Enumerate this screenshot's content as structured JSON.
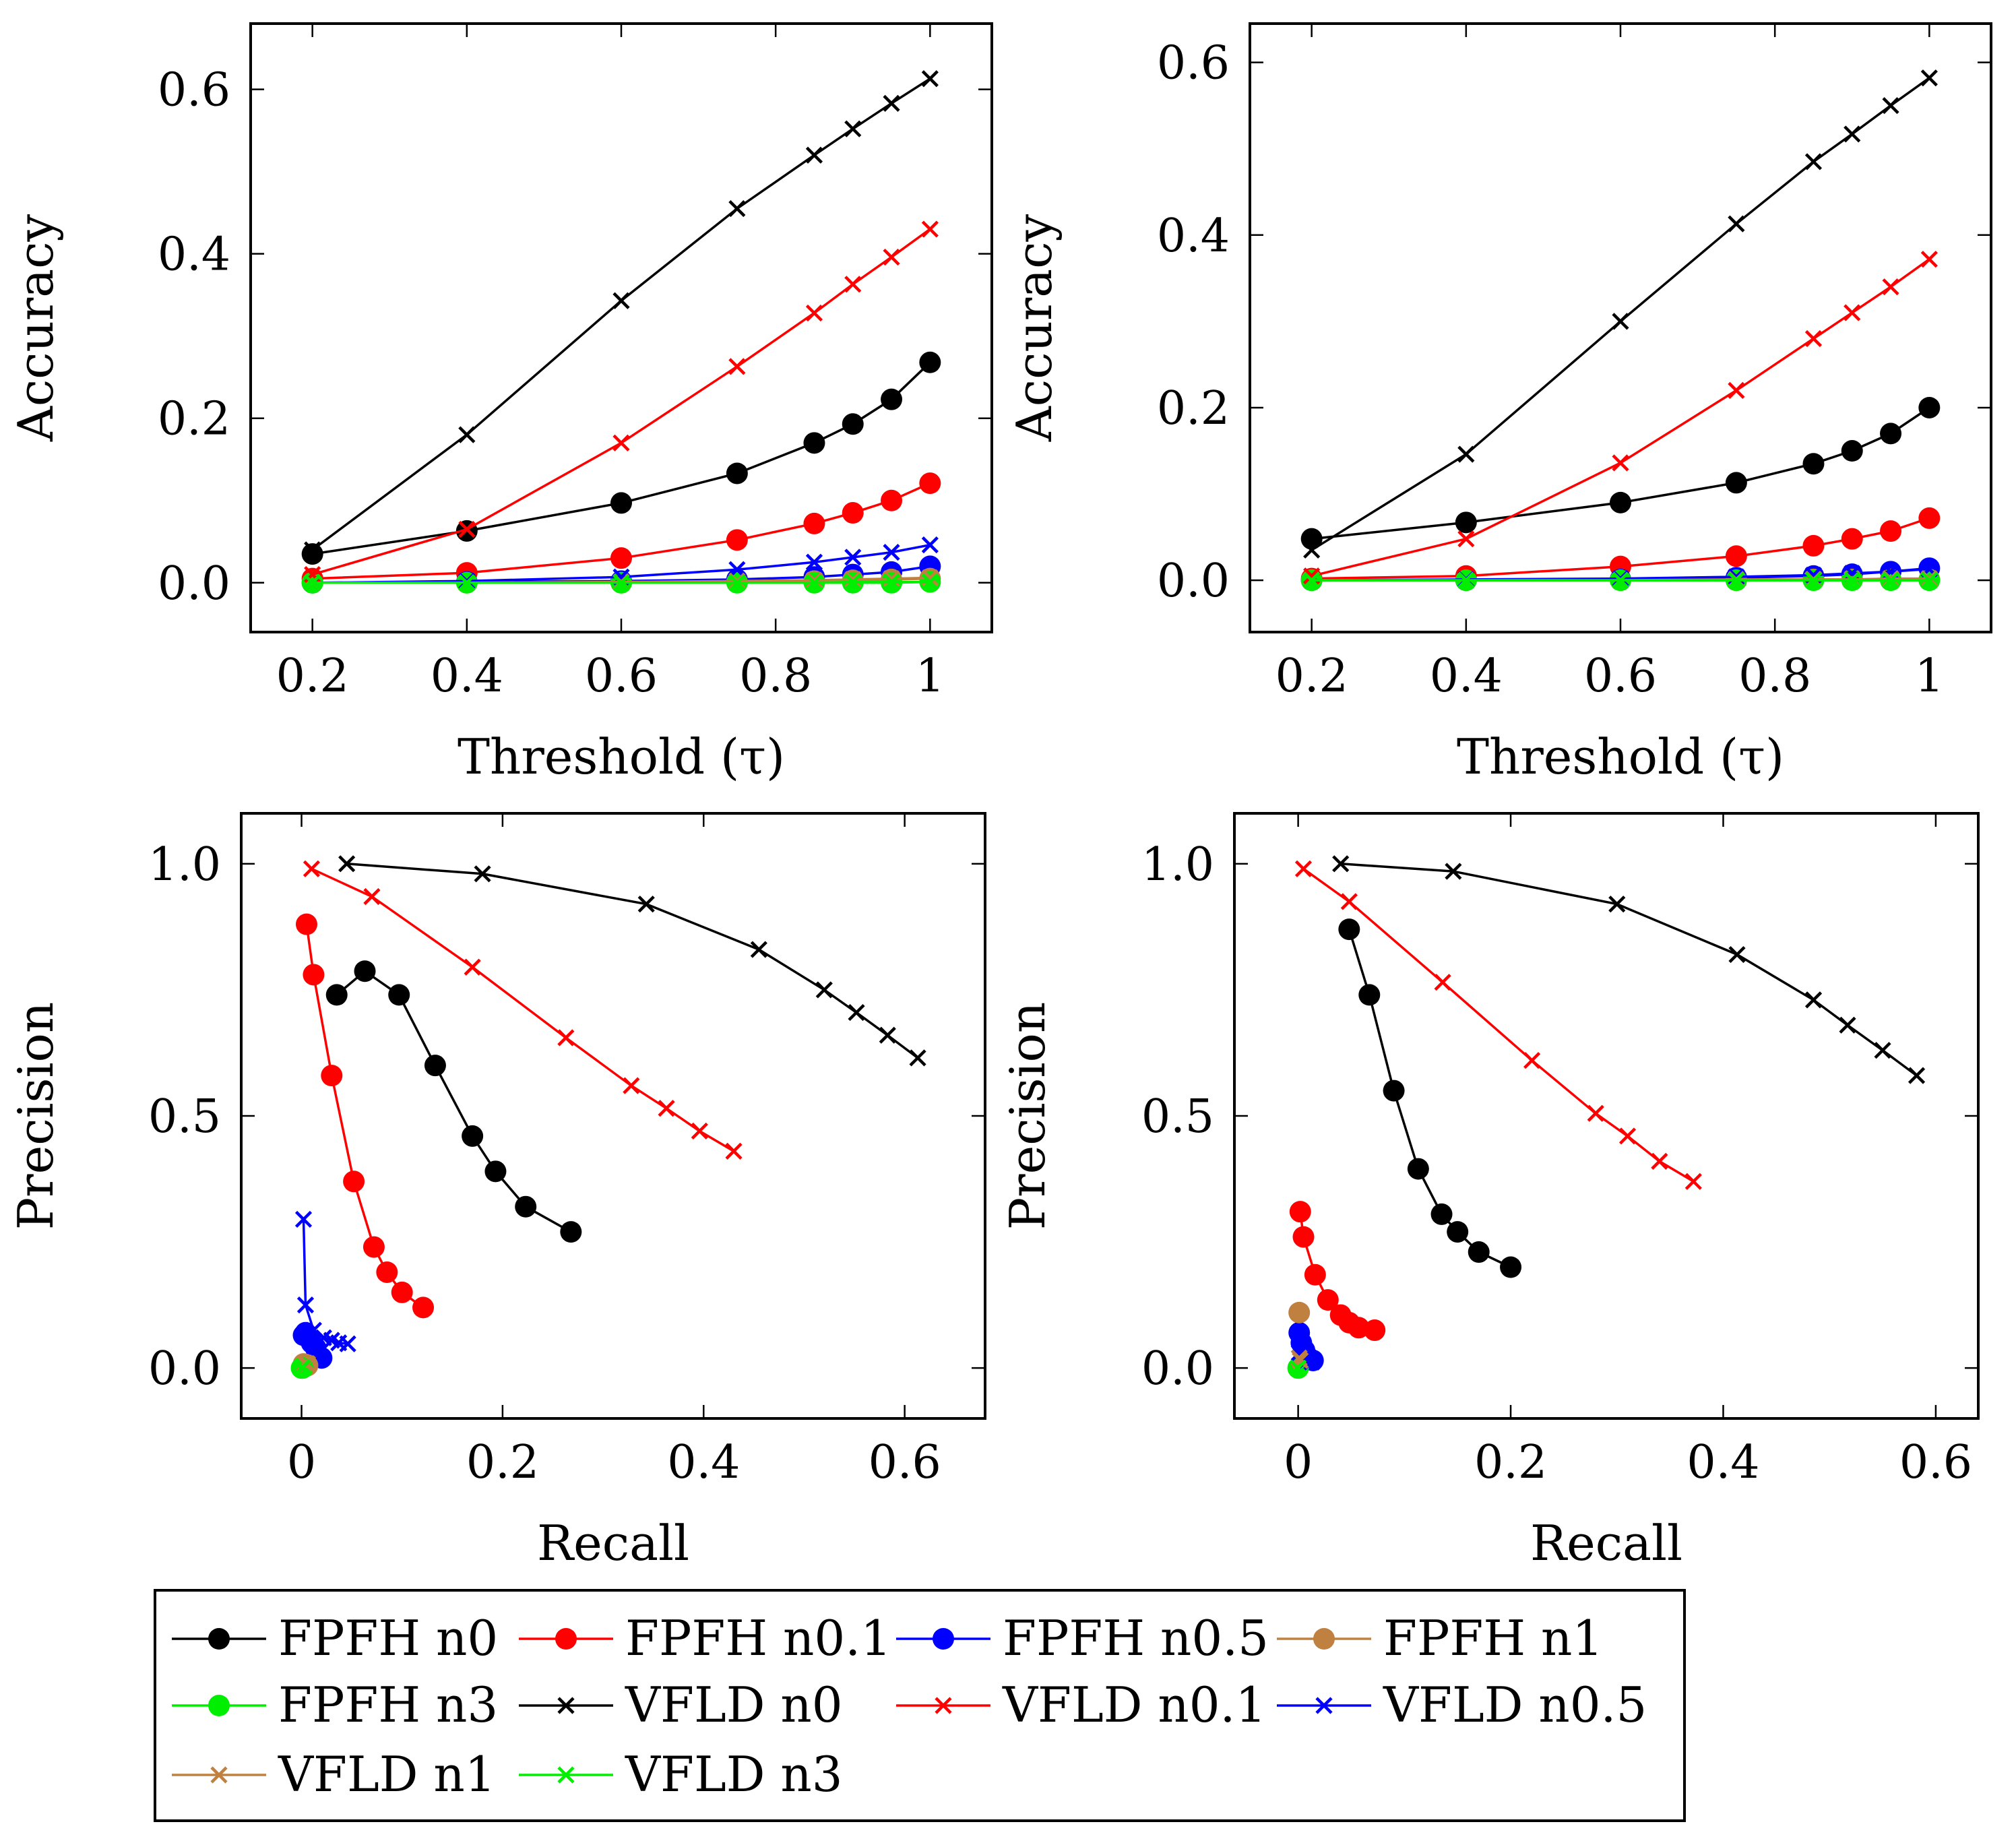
{
  "colors": {
    "FPFH n0": "#000000",
    "FPFH n0.1": "#ff0000",
    "FPFH n0.5": "#0000ff",
    "FPFH n1": "#bf8040",
    "FPFH n3": "#00ee00",
    "VFLD n0": "#000000",
    "VFLD n0.1": "#ff0000",
    "VFLD n0.5": "#0000ff",
    "VFLD n1": "#bf8040",
    "VFLD n3": "#00ee00"
  },
  "legend": {
    "entries": [
      {
        "label": "FPFH n0",
        "marker": "circle"
      },
      {
        "label": "FPFH n0.1",
        "marker": "circle"
      },
      {
        "label": "FPFH n0.5",
        "marker": "circle"
      },
      {
        "label": "FPFH n1",
        "marker": "circle"
      },
      {
        "label": "FPFH n3",
        "marker": "circle"
      },
      {
        "label": "VFLD n0",
        "marker": "cross"
      },
      {
        "label": "VFLD n0.1",
        "marker": "cross"
      },
      {
        "label": "VFLD n0.5",
        "marker": "cross"
      },
      {
        "label": "VFLD n1",
        "marker": "cross"
      },
      {
        "label": "VFLD n3",
        "marker": "cross"
      }
    ]
  },
  "chart_data": [
    {
      "type": "line",
      "xlabel": "Threshold (τ)",
      "ylabel": "Accuracy",
      "xlim": [
        0.12,
        1.08
      ],
      "ylim": [
        -0.06,
        0.68
      ],
      "xticks": [
        0.2,
        0.4,
        0.6,
        0.8,
        1
      ],
      "xtick_labels": [
        "0.2",
        "0.4",
        "0.6",
        "0.8",
        "1"
      ],
      "yticks": [
        0.0,
        0.2,
        0.4,
        0.6
      ],
      "ytick_labels": [
        "0.0",
        "0.2",
        "0.4",
        "0.6"
      ],
      "x": [
        0.2,
        0.4,
        0.6,
        0.75,
        0.85,
        0.9,
        0.95,
        1.0
      ],
      "series": [
        {
          "name": "FPFH n0",
          "values": [
            0.035,
            0.063,
            0.097,
            0.133,
            0.17,
            0.193,
            0.223,
            0.268
          ]
        },
        {
          "name": "FPFH n0.1",
          "values": [
            0.005,
            0.012,
            0.03,
            0.052,
            0.072,
            0.085,
            0.1,
            0.121
          ]
        },
        {
          "name": "FPFH n0.5",
          "values": [
            0.0,
            0.001,
            0.002,
            0.004,
            0.007,
            0.01,
            0.013,
            0.02
          ]
        },
        {
          "name": "FPFH n1",
          "values": [
            0.0,
            0.0,
            0.0,
            0.001,
            0.002,
            0.003,
            0.004,
            0.005
          ]
        },
        {
          "name": "FPFH n3",
          "values": [
            0.0,
            0.0,
            0.0,
            0.0,
            0.0,
            0.0,
            0.0,
            0.001
          ]
        },
        {
          "name": "VFLD n0",
          "values": [
            0.04,
            0.18,
            0.343,
            0.455,
            0.52,
            0.552,
            0.583,
            0.613
          ]
        },
        {
          "name": "VFLD n0.1",
          "values": [
            0.01,
            0.065,
            0.17,
            0.263,
            0.328,
            0.363,
            0.396,
            0.43
          ]
        },
        {
          "name": "VFLD n0.5",
          "values": [
            0.0,
            0.002,
            0.007,
            0.016,
            0.025,
            0.031,
            0.037,
            0.046
          ]
        },
        {
          "name": "VFLD n1",
          "values": [
            0.0,
            0.0,
            0.001,
            0.002,
            0.003,
            0.004,
            0.005,
            0.006
          ]
        },
        {
          "name": "VFLD n3",
          "values": [
            0.0,
            0.0,
            0.0,
            0.0,
            0.0,
            0.001,
            0.001,
            0.001
          ]
        }
      ]
    },
    {
      "type": "line",
      "xlabel": "Threshold (τ)",
      "ylabel": "Accuracy",
      "xlim": [
        0.12,
        1.08
      ],
      "ylim": [
        -0.06,
        0.645
      ],
      "xticks": [
        0.2,
        0.4,
        0.6,
        0.8,
        1
      ],
      "xtick_labels": [
        "0.2",
        "0.4",
        "0.6",
        "0.8",
        "1"
      ],
      "yticks": [
        0.0,
        0.2,
        0.4,
        0.6
      ],
      "ytick_labels": [
        "0.0",
        "0.2",
        "0.4",
        "0.6"
      ],
      "x": [
        0.2,
        0.4,
        0.6,
        0.75,
        0.85,
        0.9,
        0.95,
        1.0
      ],
      "series": [
        {
          "name": "FPFH n0",
          "values": [
            0.048,
            0.067,
            0.09,
            0.113,
            0.135,
            0.15,
            0.17,
            0.2
          ]
        },
        {
          "name": "FPFH n0.1",
          "values": [
            0.002,
            0.005,
            0.016,
            0.028,
            0.04,
            0.048,
            0.057,
            0.072
          ]
        },
        {
          "name": "FPFH n0.5",
          "values": [
            0.0,
            0.0,
            0.001,
            0.003,
            0.005,
            0.007,
            0.01,
            0.014
          ]
        },
        {
          "name": "FPFH n1",
          "values": [
            0.0,
            0.0,
            0.0,
            0.0,
            0.001,
            0.001,
            0.001,
            0.001
          ]
        },
        {
          "name": "FPFH n3",
          "values": [
            0.0,
            0.0,
            0.0,
            0.0,
            0.0,
            0.0,
            0.0,
            0.0
          ]
        },
        {
          "name": "VFLD n0",
          "values": [
            0.035,
            0.146,
            0.3,
            0.413,
            0.485,
            0.517,
            0.55,
            0.582
          ]
        },
        {
          "name": "VFLD n0.1",
          "values": [
            0.005,
            0.048,
            0.136,
            0.22,
            0.28,
            0.31,
            0.34,
            0.372
          ]
        },
        {
          "name": "VFLD n0.5",
          "values": [
            0.0,
            0.001,
            0.002,
            0.004,
            0.006,
            0.008,
            0.01,
            0.013
          ]
        },
        {
          "name": "VFLD n1",
          "values": [
            0.0,
            0.0,
            0.0,
            0.001,
            0.001,
            0.001,
            0.002,
            0.002
          ]
        },
        {
          "name": "VFLD n3",
          "values": [
            0.0,
            0.0,
            0.0,
            0.0,
            0.0,
            0.0,
            0.0,
            0.0
          ]
        }
      ]
    },
    {
      "type": "line",
      "xlabel": "Recall",
      "ylabel": "Precision",
      "xlim": [
        -0.06,
        0.68
      ],
      "ylim": [
        -0.1,
        1.1
      ],
      "xticks": [
        0,
        0.2,
        0.4,
        0.6
      ],
      "xtick_labels": [
        "0",
        "0.2",
        "0.4",
        "0.6"
      ],
      "yticks": [
        0.0,
        0.5,
        1.0
      ],
      "ytick_labels": [
        "0.0",
        "0.5",
        "1.0"
      ],
      "series": [
        {
          "name": "FPFH n0",
          "x": [
            0.035,
            0.063,
            0.097,
            0.133,
            0.17,
            0.193,
            0.223,
            0.268
          ],
          "y": [
            0.74,
            0.787,
            0.74,
            0.6,
            0.46,
            0.39,
            0.32,
            0.27
          ]
        },
        {
          "name": "FPFH n0.1",
          "x": [
            0.005,
            0.012,
            0.03,
            0.052,
            0.072,
            0.085,
            0.1,
            0.121
          ],
          "y": [
            0.88,
            0.78,
            0.58,
            0.37,
            0.24,
            0.19,
            0.15,
            0.12
          ]
        },
        {
          "name": "FPFH n0.5",
          "x": [
            0.002,
            0.004,
            0.007,
            0.01,
            0.014,
            0.02
          ],
          "y": [
            0.065,
            0.07,
            0.06,
            0.05,
            0.04,
            0.02
          ]
        },
        {
          "name": "FPFH n1",
          "x": [
            0.002,
            0.004,
            0.006
          ],
          "y": [
            0.008,
            0.007,
            0.005
          ]
        },
        {
          "name": "FPFH n3",
          "x": [
            0.0,
            0.001
          ],
          "y": [
            0.0,
            0.0
          ]
        },
        {
          "name": "VFLD n0",
          "x": [
            0.045,
            0.18,
            0.343,
            0.455,
            0.52,
            0.552,
            0.583,
            0.613
          ],
          "y": [
            1.0,
            0.98,
            0.92,
            0.83,
            0.75,
            0.705,
            0.66,
            0.615
          ]
        },
        {
          "name": "VFLD n0.1",
          "x": [
            0.01,
            0.07,
            0.17,
            0.263,
            0.328,
            0.363,
            0.396,
            0.43
          ],
          "y": [
            0.99,
            0.935,
            0.795,
            0.655,
            0.56,
            0.515,
            0.47,
            0.43
          ]
        },
        {
          "name": "VFLD n0.5",
          "x": [
            0.002,
            0.004,
            0.012,
            0.022,
            0.03,
            0.037,
            0.046
          ],
          "y": [
            0.295,
            0.125,
            0.075,
            0.06,
            0.055,
            0.05,
            0.048
          ]
        },
        {
          "name": "VFLD n1",
          "x": [
            0.003,
            0.005,
            0.006
          ],
          "y": [
            0.01,
            0.009,
            0.008
          ]
        },
        {
          "name": "VFLD n3",
          "x": [
            0.0,
            0.001
          ],
          "y": [
            0.0,
            0.001
          ]
        }
      ]
    },
    {
      "type": "line",
      "xlabel": "Recall",
      "ylabel": "Precision",
      "xlim": [
        -0.06,
        0.64
      ],
      "ylim": [
        -0.1,
        1.1
      ],
      "xticks": [
        0,
        0.2,
        0.4,
        0.6
      ],
      "xtick_labels": [
        "0",
        "0.2",
        "0.4",
        "0.6"
      ],
      "yticks": [
        0.0,
        0.5,
        1.0
      ],
      "ytick_labels": [
        "0.0",
        "0.5",
        "1.0"
      ],
      "series": [
        {
          "name": "FPFH n0",
          "x": [
            0.048,
            0.067,
            0.09,
            0.113,
            0.135,
            0.15,
            0.17,
            0.2
          ],
          "y": [
            0.87,
            0.74,
            0.55,
            0.395,
            0.305,
            0.27,
            0.23,
            0.2
          ]
        },
        {
          "name": "FPFH n0.1",
          "x": [
            0.002,
            0.005,
            0.016,
            0.028,
            0.04,
            0.048,
            0.057,
            0.072
          ],
          "y": [
            0.31,
            0.26,
            0.185,
            0.135,
            0.105,
            0.09,
            0.08,
            0.075
          ]
        },
        {
          "name": "FPFH n0.5",
          "x": [
            0.001,
            0.003,
            0.006,
            0.01,
            0.014
          ],
          "y": [
            0.07,
            0.05,
            0.035,
            0.02,
            0.015
          ]
        },
        {
          "name": "FPFH n1",
          "x": [
            0.001
          ],
          "y": [
            0.11
          ]
        },
        {
          "name": "FPFH n3",
          "x": [
            0.0
          ],
          "y": [
            0.0
          ]
        },
        {
          "name": "VFLD n0",
          "x": [
            0.04,
            0.146,
            0.3,
            0.413,
            0.485,
            0.517,
            0.55,
            0.582
          ],
          "y": [
            1.0,
            0.985,
            0.92,
            0.82,
            0.73,
            0.68,
            0.63,
            0.58
          ]
        },
        {
          "name": "VFLD n0.1",
          "x": [
            0.005,
            0.048,
            0.136,
            0.22,
            0.28,
            0.31,
            0.34,
            0.372
          ],
          "y": [
            0.99,
            0.925,
            0.765,
            0.61,
            0.505,
            0.46,
            0.41,
            0.37
          ]
        },
        {
          "name": "VFLD n0.5",
          "x": [
            0.001,
            0.004,
            0.008,
            0.013
          ],
          "y": [
            0.03,
            0.02,
            0.015,
            0.012
          ]
        },
        {
          "name": "VFLD n1",
          "x": [
            0.001,
            0.002
          ],
          "y": [
            0.02,
            0.015
          ]
        },
        {
          "name": "VFLD n3",
          "x": [
            0.0
          ],
          "y": [
            0.0
          ]
        }
      ]
    }
  ]
}
